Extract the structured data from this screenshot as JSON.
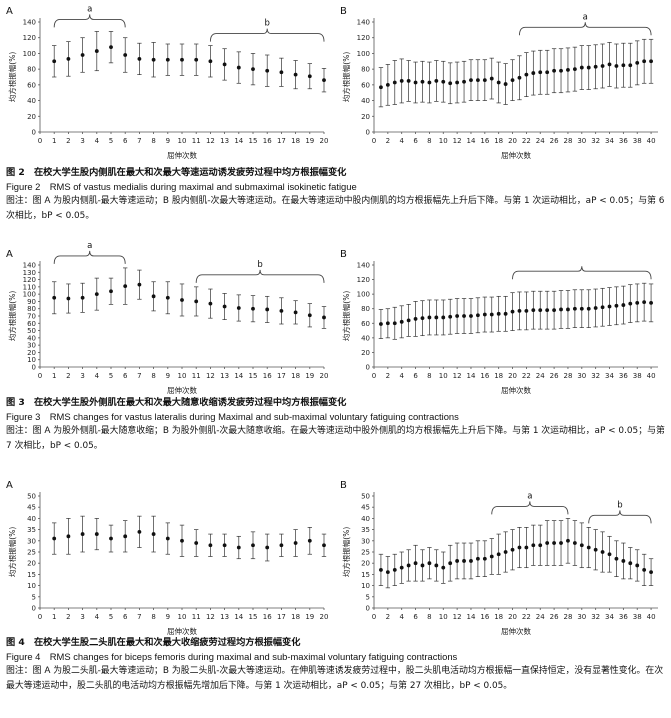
{
  "figures": [
    {
      "caption_cn": "图 2　在校大学生股内侧肌在最大和次最大等速运动诱发疲劳过程中均方根振幅变化",
      "caption_en": "Figure 2　RMS of vastus medialis during maximal and submaximal isokinetic fatigue",
      "note": "图注：图 A 为股内侧肌-最大等速运动；B 股内侧肌-次最大等速运动。在最大等速运动中股内侧肌的均方根振幅先上升后下降。与第 1 次运动相比，aP < 0.05；与第 6 次相比，bP < 0.05。"
    },
    {
      "caption_cn": "图 3　在校大学生股外侧肌在最大和次最大随意收缩诱发疲劳过程中均方根振幅变化",
      "caption_en": "Figure 3　RMS changes for vastus lateralis during Maximal and sub-maximal voluntary fatiguing contractions",
      "note": "图注：图 A 为股外侧肌-最大随意收缩；B 为股外侧肌-次最大随意收缩。在最大等速运动中股外侧肌的均方根振幅先上升后下降。与第 1 次运动相比，aP < 0.05；与第 7 次相比，bP < 0.05。"
    },
    {
      "caption_cn": "图 4　在校大学生股二头肌在最大和次最大收缩疲劳过程均方根振幅变化",
      "caption_en": "Figure 4　RMS changes for biceps femoris during maximal and sub-maximal voluntary fatiguing contractions",
      "note": "图注：图 A 为股二头肌-最大等速运动；B 为股二头肌-次最大等速运动。在伸肌等速诱发疲劳过程中，股二头肌电活动均方根振幅一直保持恒定，没有显著性变化。在次最大等速运动中，股二头肌的电活动均方根振幅先增加后下降。与第 1 次运动相比，aP < 0.05；与第 27 次相比，bP < 0.05。"
    }
  ],
  "chart_data": [
    {
      "type": "scatter",
      "panel": "A",
      "figure": "Figure 2",
      "xlabel": "屈伸次数",
      "ylabel": "均方根振幅(%)",
      "ylim": [
        0,
        140
      ],
      "yticks": [
        0,
        20,
        40,
        60,
        80,
        100,
        120,
        140
      ],
      "x": [
        1,
        2,
        3,
        4,
        5,
        6,
        7,
        8,
        9,
        10,
        11,
        12,
        13,
        14,
        15,
        16,
        17,
        18,
        19,
        20
      ],
      "xticks": [
        0,
        1,
        2,
        3,
        4,
        5,
        6,
        7,
        8,
        9,
        10,
        11,
        12,
        13,
        14,
        15,
        16,
        17,
        18,
        19,
        20
      ],
      "xlim": [
        0,
        20
      ],
      "values": [
        90,
        93,
        98,
        103,
        108,
        98,
        93,
        92,
        92,
        92,
        92,
        90,
        86,
        82,
        80,
        78,
        76,
        73,
        71,
        66
      ],
      "errors": [
        20,
        22,
        22,
        25,
        20,
        22,
        20,
        22,
        20,
        20,
        20,
        20,
        20,
        20,
        20,
        20,
        18,
        18,
        16,
        15
      ],
      "annotations": [
        {
          "label": "a",
          "from": 1,
          "to": 6
        },
        {
          "label": "b",
          "from": 12,
          "to": 20
        }
      ]
    },
    {
      "type": "scatter",
      "panel": "B",
      "figure": "Figure 2",
      "xlabel": "屈伸次数",
      "ylabel": "均方根振幅(%)",
      "ylim": [
        0,
        140
      ],
      "yticks": [
        0,
        20,
        40,
        60,
        80,
        100,
        120,
        140
      ],
      "x": [
        1,
        2,
        3,
        4,
        5,
        6,
        7,
        8,
        9,
        10,
        11,
        12,
        13,
        14,
        15,
        16,
        17,
        18,
        19,
        20,
        21,
        22,
        23,
        24,
        25,
        26,
        27,
        28,
        29,
        30,
        31,
        32,
        33,
        34,
        35,
        36,
        37,
        38,
        39,
        40
      ],
      "xticks": [
        0,
        2,
        4,
        6,
        8,
        10,
        12,
        14,
        16,
        18,
        20,
        22,
        24,
        26,
        28,
        30,
        32,
        34,
        36,
        38,
        40
      ],
      "xlim": [
        0,
        41
      ],
      "values": [
        57,
        60,
        63,
        65,
        65,
        63,
        64,
        63,
        65,
        64,
        62,
        63,
        64,
        66,
        66,
        66,
        68,
        63,
        61,
        66,
        69,
        73,
        75,
        76,
        76,
        78,
        78,
        79,
        80,
        82,
        82,
        83,
        84,
        86,
        84,
        85,
        85,
        88,
        90,
        90
      ],
      "errors": [
        25,
        26,
        28,
        28,
        26,
        26,
        26,
        26,
        26,
        26,
        26,
        26,
        26,
        26,
        26,
        26,
        26,
        26,
        26,
        26,
        28,
        28,
        28,
        28,
        28,
        28,
        28,
        28,
        28,
        28,
        28,
        28,
        28,
        28,
        28,
        28,
        28,
        28,
        28,
        28
      ],
      "annotations": [
        {
          "label": "a",
          "from": 21,
          "to": 40
        }
      ]
    },
    {
      "type": "scatter",
      "panel": "A",
      "figure": "Figure 3",
      "xlabel": "屈伸次数",
      "ylabel": "均方根振幅(%)",
      "ylim": [
        0,
        140
      ],
      "yticks": [
        0,
        10,
        20,
        30,
        40,
        50,
        60,
        70,
        80,
        90,
        100,
        110,
        120,
        130,
        140
      ],
      "x": [
        1,
        2,
        3,
        4,
        5,
        6,
        7,
        8,
        9,
        10,
        11,
        12,
        13,
        14,
        15,
        16,
        17,
        18,
        19,
        20
      ],
      "xticks": [
        0,
        1,
        2,
        3,
        4,
        5,
        6,
        7,
        8,
        9,
        10,
        11,
        12,
        13,
        14,
        15,
        16,
        17,
        18,
        19,
        20
      ],
      "xlim": [
        0,
        20
      ],
      "values": [
        95,
        94,
        95,
        100,
        104,
        111,
        113,
        97,
        95,
        92,
        90,
        87,
        83,
        81,
        80,
        79,
        77,
        75,
        71,
        68
      ],
      "errors": [
        22,
        20,
        20,
        22,
        18,
        25,
        20,
        20,
        22,
        22,
        20,
        20,
        18,
        18,
        18,
        18,
        18,
        16,
        16,
        15
      ],
      "annotations": [
        {
          "label": "a",
          "from": 1,
          "to": 6
        },
        {
          "label": "b",
          "from": 11,
          "to": 20
        }
      ]
    },
    {
      "type": "scatter",
      "panel": "B",
      "figure": "Figure 3",
      "xlabel": "屈伸次数",
      "ylabel": "均方根振幅(%)",
      "ylim": [
        0,
        140
      ],
      "yticks": [
        0,
        20,
        40,
        60,
        80,
        100,
        120,
        140
      ],
      "x": [
        1,
        2,
        3,
        4,
        5,
        6,
        7,
        8,
        9,
        10,
        11,
        12,
        13,
        14,
        15,
        16,
        17,
        18,
        19,
        20,
        21,
        22,
        23,
        24,
        25,
        26,
        27,
        28,
        29,
        30,
        31,
        32,
        33,
        34,
        35,
        36,
        37,
        38,
        39,
        40
      ],
      "xticks": [
        0,
        2,
        4,
        6,
        8,
        10,
        12,
        14,
        16,
        18,
        20,
        22,
        24,
        26,
        28,
        30,
        32,
        34,
        36,
        38,
        40
      ],
      "xlim": [
        0,
        41
      ],
      "values": [
        59,
        60,
        60,
        62,
        64,
        66,
        67,
        68,
        68,
        68,
        69,
        70,
        70,
        70,
        71,
        72,
        72,
        73,
        73,
        76,
        77,
        77,
        78,
        78,
        78,
        78,
        79,
        79,
        80,
        80,
        80,
        81,
        82,
        83,
        84,
        85,
        87,
        88,
        89,
        88
      ],
      "errors": [
        20,
        20,
        22,
        22,
        22,
        24,
        24,
        24,
        24,
        24,
        24,
        24,
        24,
        24,
        24,
        24,
        24,
        24,
        24,
        26,
        26,
        26,
        26,
        26,
        26,
        26,
        26,
        26,
        26,
        26,
        26,
        26,
        26,
        26,
        26,
        26,
        26,
        26,
        26,
        26
      ],
      "annotations": [
        {
          "label": "",
          "from": 20,
          "to": 40
        }
      ]
    },
    {
      "type": "scatter",
      "panel": "A",
      "figure": "Figure 4",
      "xlabel": "屈伸次数",
      "ylabel": "均方根振幅(%)",
      "ylim": [
        0,
        50
      ],
      "yticks": [
        0,
        5,
        10,
        15,
        20,
        25,
        30,
        35,
        40,
        45,
        50
      ],
      "x": [
        1,
        2,
        3,
        4,
        5,
        6,
        7,
        8,
        9,
        10,
        11,
        12,
        13,
        14,
        15,
        16,
        17,
        18,
        19,
        20
      ],
      "xticks": [
        0,
        1,
        2,
        3,
        4,
        5,
        6,
        7,
        8,
        9,
        10,
        11,
        12,
        13,
        14,
        15,
        16,
        17,
        18,
        19,
        20
      ],
      "xlim": [
        0,
        20
      ],
      "values": [
        31,
        32,
        33,
        33,
        31,
        32,
        34,
        33,
        31,
        30,
        29,
        28,
        28,
        27,
        28,
        27,
        28,
        29,
        30,
        28
      ],
      "errors": [
        7,
        8,
        8,
        7,
        6,
        7,
        7,
        8,
        7,
        7,
        6,
        5,
        5,
        5,
        6,
        6,
        5,
        6,
        6,
        5
      ],
      "annotations": []
    },
    {
      "type": "scatter",
      "panel": "B",
      "figure": "Figure 4",
      "xlabel": "屈伸次数",
      "ylabel": "均方根振幅(%)",
      "ylim": [
        0,
        50
      ],
      "yticks": [
        0,
        5,
        10,
        15,
        20,
        25,
        30,
        35,
        40,
        45,
        50
      ],
      "x": [
        1,
        2,
        3,
        4,
        5,
        6,
        7,
        8,
        9,
        10,
        11,
        12,
        13,
        14,
        15,
        16,
        17,
        18,
        19,
        20,
        21,
        22,
        23,
        24,
        25,
        26,
        27,
        28,
        29,
        30,
        31,
        32,
        33,
        34,
        35,
        36,
        37,
        38,
        39,
        40
      ],
      "xticks": [
        0,
        2,
        4,
        6,
        8,
        10,
        12,
        14,
        16,
        18,
        20,
        22,
        24,
        26,
        28,
        30,
        32,
        34,
        36,
        38,
        40
      ],
      "xlim": [
        0,
        41
      ],
      "values": [
        17,
        16,
        17,
        18,
        19,
        20,
        19,
        20,
        19,
        18,
        20,
        21,
        21,
        21,
        22,
        22,
        23,
        24,
        25,
        26,
        27,
        27,
        28,
        28,
        29,
        29,
        29,
        30,
        29,
        28,
        27,
        26,
        25,
        24,
        22,
        21,
        20,
        19,
        17,
        16
      ],
      "errors": [
        7,
        7,
        7,
        7,
        7,
        8,
        7,
        7,
        7,
        7,
        8,
        8,
        8,
        8,
        8,
        8,
        8,
        9,
        9,
        9,
        9,
        9,
        9,
        9,
        10,
        10,
        10,
        10,
        10,
        10,
        9,
        9,
        9,
        8,
        8,
        8,
        7,
        7,
        7,
        6
      ],
      "annotations": [
        {
          "label": "a",
          "from": 17,
          "to": 28
        },
        {
          "label": "b",
          "from": 31,
          "to": 40
        }
      ]
    }
  ]
}
